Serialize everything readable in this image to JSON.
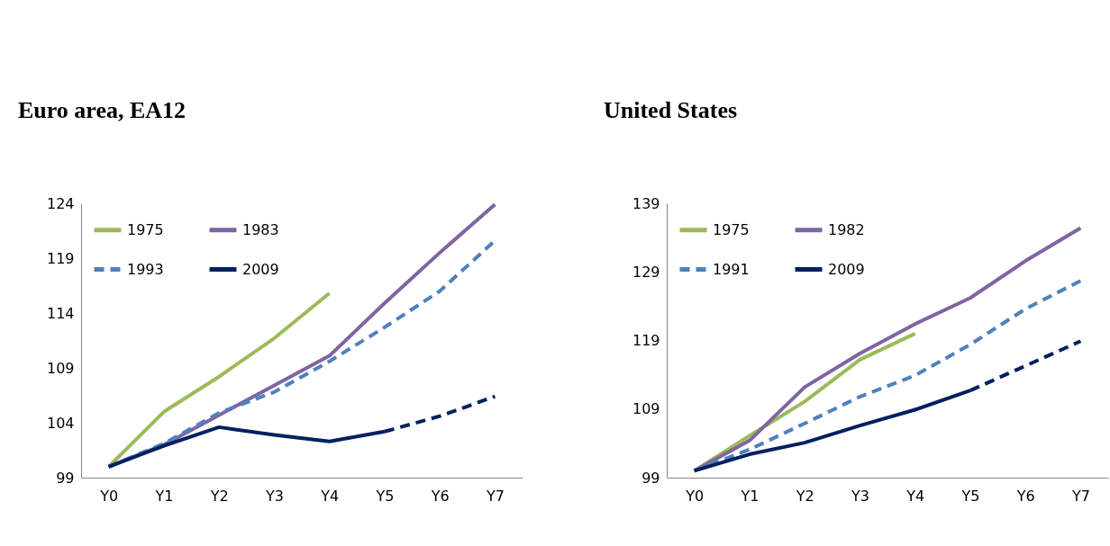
{
  "chart_data": [
    {
      "type": "line",
      "title": "Euro area, EA12",
      "categories": [
        "Y0",
        "Y1",
        "Y2",
        "Y3",
        "Y4",
        "Y5",
        "Y6",
        "Y7"
      ],
      "ylim": [
        99,
        124
      ],
      "yticks": [
        99,
        104,
        109,
        114,
        119,
        124
      ],
      "legend": "top left",
      "series": [
        {
          "name": "1975",
          "color": "#9bbb59",
          "line_style": "solid",
          "values": [
            100,
            105.0,
            108.2,
            111.7,
            115.8,
            null,
            null,
            null
          ]
        },
        {
          "name": "1983",
          "color": "#8064a2",
          "line_style": "solid",
          "values": [
            100,
            102.0,
            104.7,
            107.4,
            110.1,
            114.9,
            119.5,
            123.9
          ]
        },
        {
          "name": "1993",
          "color": "#4f81bd",
          "line_style": "dashed",
          "values": [
            100,
            102.1,
            104.9,
            106.8,
            109.6,
            112.7,
            116.0,
            120.6
          ]
        },
        {
          "name": "2009",
          "color": "#002060",
          "line_style": "solid",
          "values": [
            100,
            101.9,
            103.6,
            102.9,
            102.3,
            103.2,
            null,
            null
          ]
        },
        {
          "color": "#002060",
          "line_style": "dashed",
          "values": [
            null,
            null,
            null,
            null,
            null,
            103.2,
            104.6,
            106.4
          ]
        }
      ]
    },
    {
      "type": "line",
      "title": "United States",
      "categories": [
        "Y0",
        "Y1",
        "Y2",
        "Y3",
        "Y4",
        "Y5",
        "Y6",
        "Y7"
      ],
      "ylim": [
        99,
        139
      ],
      "yticks": [
        99,
        109,
        119,
        129,
        139
      ],
      "legend": "top left",
      "series": [
        {
          "name": "1975",
          "color": "#9bbb59",
          "line_style": "solid",
          "values": [
            100,
            105.1,
            110.1,
            116.2,
            120.0,
            null,
            null,
            null
          ]
        },
        {
          "name": "1982",
          "color": "#8064a2",
          "line_style": "solid",
          "values": [
            100,
            104.4,
            112.2,
            117.1,
            121.4,
            125.2,
            130.6,
            135.4
          ]
        },
        {
          "name": "1991",
          "color": "#4f81bd",
          "line_style": "dashed",
          "values": [
            100,
            103.1,
            106.9,
            110.8,
            113.9,
            118.4,
            123.6,
            127.7
          ]
        },
        {
          "name": "2009",
          "color": "#002060",
          "line_style": "solid",
          "values": [
            100,
            102.4,
            104.1,
            106.6,
            108.9,
            111.7,
            null,
            null
          ]
        },
        {
          "color": "#002060",
          "line_style": "dashed",
          "values": [
            null,
            null,
            null,
            null,
            null,
            111.7,
            115.3,
            118.9
          ]
        }
      ]
    }
  ]
}
